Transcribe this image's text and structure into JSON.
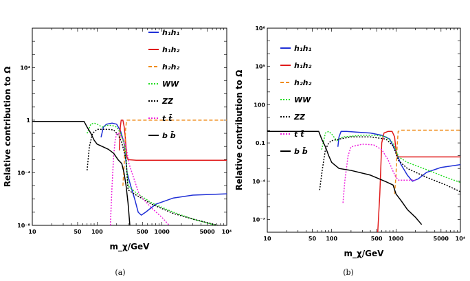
{
  "chart_data": [
    {
      "type": "line",
      "caption": "(a)",
      "xlabel": "m_χ/GeV",
      "ylabel": "Relative contribution to Ω",
      "xscale": "log",
      "yscale": "log",
      "xlim": [
        10,
        10000
      ],
      "ylim": [
        1e-08,
        10000000.0
      ],
      "xticks": [
        {
          "v": 10,
          "label": "10"
        },
        {
          "v": 50,
          "label": "50"
        },
        {
          "v": 100,
          "label": "100"
        },
        {
          "v": 500,
          "label": "500"
        },
        {
          "v": 1000,
          "label": "1000"
        },
        {
          "v": 5000,
          "label": "5000"
        },
        {
          "v": 10000,
          "label": "10⁴"
        }
      ],
      "yticks": [
        {
          "v": 1e-08,
          "label": "10⁻⁸"
        },
        {
          "v": 0.0001,
          "label": "10⁻⁴"
        },
        {
          "v": 1,
          "label": "1"
        },
        {
          "v": 10000,
          "label": "10⁴"
        }
      ],
      "legend_position": "top-right",
      "series": [
        {
          "name": "h₁h₁",
          "color": "#1f2fd6",
          "dash": "solid",
          "points": [
            [
              115,
              0.05
            ],
            [
              125,
              0.3
            ],
            [
              140,
              0.5
            ],
            [
              170,
              0.6
            ],
            [
              200,
              0.5
            ],
            [
              230,
              0.15
            ],
            [
              260,
              0.02
            ],
            [
              290,
              0.0001
            ],
            [
              330,
              1e-05
            ],
            [
              380,
              1e-06
            ],
            [
              430,
              1e-07
            ],
            [
              480,
              6e-08
            ],
            [
              560,
              1e-07
            ],
            [
              800,
              4e-07
            ],
            [
              1500,
              1.2e-06
            ],
            [
              3000,
              2e-06
            ],
            [
              10000,
              2.5e-06
            ]
          ]
        },
        {
          "name": "h₁h₂",
          "color": "#e01a1a",
          "dash": "solid",
          "points": [
            [
              220,
              0.005
            ],
            [
              228,
              0.3
            ],
            [
              235,
              1
            ],
            [
              250,
              1
            ],
            [
              262,
              0.3
            ],
            [
              272,
              0.05
            ],
            [
              285,
              0.002
            ],
            [
              300,
              0.001
            ],
            [
              400,
              0.0009
            ],
            [
              1000,
              0.0009
            ],
            [
              10000,
              0.0009
            ]
          ]
        },
        {
          "name": "h₂h₂",
          "color": "#f08c1a",
          "dash": "dash",
          "points": [
            [
              250,
              1e-05
            ],
            [
              262,
              0.0005
            ],
            [
              275,
              0.2
            ],
            [
              285,
              1
            ],
            [
              300,
              1
            ],
            [
              1000,
              1
            ],
            [
              10000,
              1
            ]
          ]
        },
        {
          "name": "WW",
          "color": "#22dd22",
          "dash": "dot",
          "points": [
            [
              70,
              0.1
            ],
            [
              80,
              0.5
            ],
            [
              90,
              0.6
            ],
            [
              100,
              0.5
            ],
            [
              120,
              0.3
            ],
            [
              140,
              0.4
            ],
            [
              170,
              0.4
            ],
            [
              200,
              0.3
            ],
            [
              230,
              0.1
            ],
            [
              270,
              0.01
            ],
            [
              300,
              1e-05
            ],
            [
              400,
              3e-06
            ],
            [
              700,
              5e-07
            ],
            [
              1500,
              1e-07
            ],
            [
              3000,
              3e-08
            ],
            [
              8000,
              8e-09
            ]
          ]
        },
        {
          "name": "ZZ",
          "color": "#000000",
          "dash": "dot",
          "points": [
            [
              70,
              0.00015
            ],
            [
              76,
              0.01
            ],
            [
              85,
              0.1
            ],
            [
              100,
              0.2
            ],
            [
              150,
              0.2
            ],
            [
              180,
              0.18
            ],
            [
              210,
              0.08
            ],
            [
              240,
              0.02
            ],
            [
              280,
              0.001
            ],
            [
              300,
              5e-06
            ],
            [
              400,
              2e-06
            ],
            [
              700,
              4e-07
            ],
            [
              1500,
              8e-08
            ],
            [
              3000,
              3e-08
            ],
            [
              8000,
              9e-09
            ]
          ]
        },
        {
          "name": "t t̄",
          "color": "#ee22dd",
          "dash": "dot",
          "points": [
            [
              160,
              1e-08
            ],
            [
              170,
              1e-05
            ],
            [
              180,
              0.002
            ],
            [
              190,
              0.03
            ],
            [
              200,
              0.1
            ],
            [
              220,
              0.1
            ],
            [
              240,
              0.05
            ],
            [
              280,
              0.01
            ],
            [
              310,
              0.0005
            ],
            [
              350,
              8e-05
            ],
            [
              450,
              2e-06
            ],
            [
              700,
              2e-07
            ],
            [
              1000,
              4e-08
            ],
            [
              1300,
              1e-08
            ]
          ]
        },
        {
          "name": "b b̄",
          "color": "#000000",
          "dash": "solid",
          "points": [
            [
              10,
              0.8
            ],
            [
              63,
              0.8
            ],
            [
              70,
              0.3
            ],
            [
              80,
              0.1
            ],
            [
              90,
              0.03
            ],
            [
              100,
              0.015
            ],
            [
              120,
              0.01
            ],
            [
              150,
              0.006
            ],
            [
              180,
              0.003
            ],
            [
              210,
              0.001
            ],
            [
              240,
              0.0005
            ],
            [
              260,
              0.0001
            ],
            [
              280,
              1e-05
            ],
            [
              300,
              5e-07
            ],
            [
              320,
              1e-08
            ]
          ]
        }
      ]
    },
    {
      "type": "line",
      "caption": "(b)",
      "xlabel": "m_χ/GeV",
      "ylabel": "Relative contribution to Ω",
      "xscale": "log",
      "yscale": "log",
      "xlim": [
        10,
        10000
      ],
      "ylim": [
        1e-08,
        100000000.0
      ],
      "xticks": [
        {
          "v": 10,
          "label": "10"
        },
        {
          "v": 50,
          "label": "50"
        },
        {
          "v": 100,
          "label": "100"
        },
        {
          "v": 500,
          "label": "500"
        },
        {
          "v": 1000,
          "label": "1000"
        },
        {
          "v": 5000,
          "label": "5000"
        },
        {
          "v": 10000,
          "label": "10⁴"
        }
      ],
      "yticks": [
        {
          "v": 1e-07,
          "label": "10⁻⁷"
        },
        {
          "v": 0.0001,
          "label": "10⁻⁴"
        },
        {
          "v": 0.1,
          "label": "0.1"
        },
        {
          "v": 100,
          "label": "100"
        },
        {
          "v": 100000,
          "label": "10⁵"
        },
        {
          "v": 100000000.0,
          "label": "10⁸"
        }
      ],
      "legend_position": "top-right",
      "series": [
        {
          "name": "h₁h₁",
          "color": "#1f2fd6",
          "dash": "solid",
          "points": [
            [
              125,
              0.05
            ],
            [
              130,
              0.3
            ],
            [
              140,
              0.8
            ],
            [
              170,
              0.8
            ],
            [
              250,
              0.7
            ],
            [
              400,
              0.6
            ],
            [
              600,
              0.4
            ],
            [
              800,
              0.2
            ],
            [
              1000,
              0.02
            ],
            [
              1200,
              0.002
            ],
            [
              1500,
              0.0003
            ],
            [
              1800,
              0.0001
            ],
            [
              2200,
              0.00015
            ],
            [
              3000,
              0.0005
            ],
            [
              5000,
              0.0012
            ],
            [
              10000,
              0.002
            ]
          ]
        },
        {
          "name": "h₁h₂",
          "color": "#e01a1a",
          "dash": "solid",
          "points": [
            [
              520,
              1e-08
            ],
            [
              560,
              1e-05
            ],
            [
              600,
              0.1
            ],
            [
              650,
              0.6
            ],
            [
              750,
              0.8
            ],
            [
              870,
              0.8
            ],
            [
              950,
              0.3
            ],
            [
              1020,
              0.01
            ],
            [
              1100,
              0.008
            ],
            [
              3000,
              0.008
            ],
            [
              10000,
              0.008
            ]
          ]
        },
        {
          "name": "h₂h₂",
          "color": "#f08c1a",
          "dash": "dash",
          "points": [
            [
              950,
              1e-05
            ],
            [
              1000,
              0.0003
            ],
            [
              1040,
              0.05
            ],
            [
              1080,
              0.8
            ],
            [
              1200,
              1
            ],
            [
              3000,
              1
            ],
            [
              10000,
              1
            ]
          ]
        },
        {
          "name": "WW",
          "color": "#22dd22",
          "dash": "dot",
          "points": [
            [
              70,
              0.03
            ],
            [
              80,
              0.6
            ],
            [
              90,
              0.8
            ],
            [
              100,
              0.5
            ],
            [
              120,
              0.15
            ],
            [
              150,
              0.3
            ],
            [
              300,
              0.4
            ],
            [
              500,
              0.4
            ],
            [
              700,
              0.3
            ],
            [
              900,
              0.1
            ],
            [
              1100,
              0.008
            ],
            [
              1500,
              0.003
            ],
            [
              3000,
              0.0008
            ],
            [
              6000,
              0.0002
            ],
            [
              10000,
              8e-05
            ]
          ]
        },
        {
          "name": "ZZ",
          "color": "#000000",
          "dash": "dot",
          "points": [
            [
              65,
              2e-05
            ],
            [
              72,
              0.001
            ],
            [
              80,
              0.03
            ],
            [
              90,
              0.1
            ],
            [
              100,
              0.15
            ],
            [
              130,
              0.2
            ],
            [
              200,
              0.3
            ],
            [
              400,
              0.3
            ],
            [
              700,
              0.2
            ],
            [
              900,
              0.06
            ],
            [
              1100,
              0.004
            ],
            [
              1500,
              0.001
            ],
            [
              3000,
              0.0002
            ],
            [
              6000,
              5e-05
            ],
            [
              10000,
              1.5e-05
            ]
          ]
        },
        {
          "name": "t t̄",
          "color": "#ee22dd",
          "dash": "dot",
          "points": [
            [
              150,
              2e-06
            ],
            [
              160,
              0.0001
            ],
            [
              180,
              0.01
            ],
            [
              200,
              0.05
            ],
            [
              300,
              0.08
            ],
            [
              450,
              0.07
            ],
            [
              600,
              0.03
            ],
            [
              750,
              0.005
            ],
            [
              900,
              0.0006
            ],
            [
              1000,
              0.0002
            ],
            [
              1100,
              0.00012
            ],
            [
              2000,
              0.00012
            ]
          ]
        },
        {
          "name": "b b̄",
          "color": "#000000",
          "dash": "solid",
          "points": [
            [
              10,
              0.8
            ],
            [
              63,
              0.8
            ],
            [
              70,
              0.2
            ],
            [
              80,
              0.05
            ],
            [
              90,
              0.01
            ],
            [
              100,
              0.003
            ],
            [
              130,
              0.001
            ],
            [
              200,
              0.0007
            ],
            [
              400,
              0.0003
            ],
            [
              700,
              9e-05
            ],
            [
              900,
              5e-05
            ],
            [
              1000,
              1e-05
            ],
            [
              1200,
              3e-06
            ],
            [
              1500,
              6e-07
            ],
            [
              2000,
              1.5e-07
            ],
            [
              2500,
              4e-08
            ]
          ]
        }
      ]
    }
  ]
}
